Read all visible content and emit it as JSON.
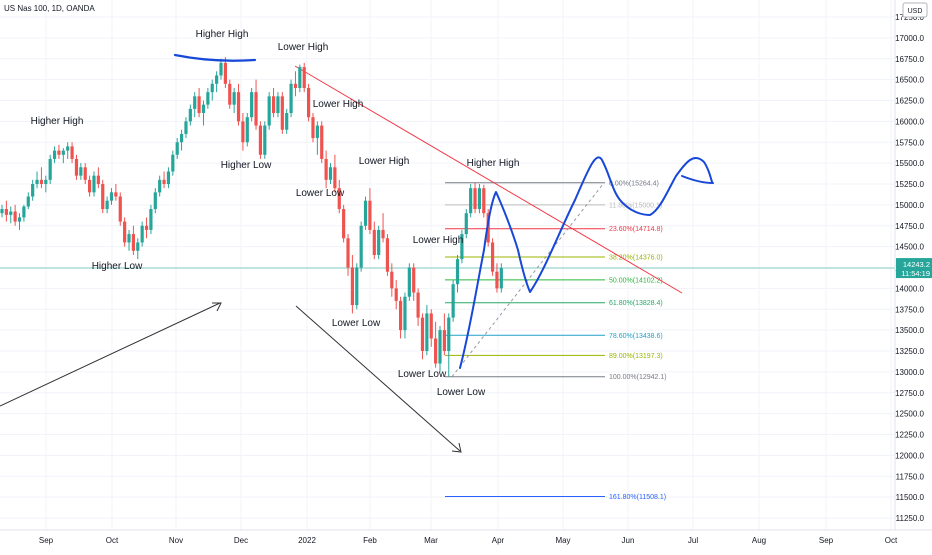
{
  "header": {
    "title": "US Nas 100, 1D, OANDA"
  },
  "chart_data": {
    "type": "candlestick",
    "title": "US Nas 100, 1D, OANDA",
    "currency": "USD",
    "ylim": [
      11150,
      17600
    ],
    "y_ticks": [
      11250,
      11500,
      11750,
      12000,
      12250,
      12500,
      12750,
      13000,
      13250,
      13500,
      13750,
      14000,
      14250,
      14500,
      14750,
      15000,
      15250,
      15500,
      15750,
      16000,
      16250,
      16500,
      16750,
      17000,
      17250
    ],
    "y_tick_labels": [
      "11250.0",
      "11500.0",
      "11750.0",
      "12000.0",
      "12250.0",
      "12500.0",
      "12750.0",
      "13000.0",
      "13250.0",
      "13500.0",
      "13750.0",
      "14000.0",
      "14250.0",
      "14500.0",
      "14750.0",
      "15000.0",
      "15250.0",
      "15500.0",
      "15750.0",
      "16000.0",
      "16250.0",
      "16500.0",
      "16750.0",
      "17000.0",
      "17250.0"
    ],
    "x_labels": [
      "Sep",
      "Oct",
      "Nov",
      "Dec",
      "2022",
      "Feb",
      "Mar",
      "Apr",
      "May",
      "Jun",
      "Jul",
      "Aug",
      "Sep",
      "Oct"
    ],
    "current_price": {
      "value": 14243.2,
      "label": "14243.2",
      "countdown": "11:54:19",
      "color": "#26a69a"
    },
    "colors": {
      "up": "#26a69a",
      "down": "#ef5350",
      "drawing": "#1848d8",
      "trendline": "#f23645",
      "arrow": "#333333"
    },
    "candles": [
      [
        14900,
        15000,
        14850,
        14950
      ],
      [
        14950,
        15050,
        14800,
        14880
      ],
      [
        14880,
        14980,
        14780,
        14920
      ],
      [
        14920,
        15000,
        14750,
        14800
      ],
      [
        14800,
        14900,
        14700,
        14850
      ],
      [
        14850,
        15000,
        14800,
        14980
      ],
      [
        14980,
        15150,
        14950,
        15100
      ],
      [
        15100,
        15300,
        15050,
        15250
      ],
      [
        15250,
        15400,
        15200,
        15300
      ],
      [
        15300,
        15450,
        15200,
        15250
      ],
      [
        15250,
        15350,
        15150,
        15300
      ],
      [
        15300,
        15600,
        15250,
        15550
      ],
      [
        15550,
        15700,
        15500,
        15650
      ],
      [
        15650,
        15720,
        15550,
        15600
      ],
      [
        15600,
        15680,
        15500,
        15650
      ],
      [
        15650,
        15750,
        15550,
        15700
      ],
      [
        15700,
        15750,
        15500,
        15550
      ],
      [
        15550,
        15600,
        15300,
        15350
      ],
      [
        15350,
        15500,
        15300,
        15450
      ],
      [
        15450,
        15500,
        15250,
        15300
      ],
      [
        15300,
        15350,
        15100,
        15150
      ],
      [
        15150,
        15400,
        15100,
        15350
      ],
      [
        15350,
        15450,
        15200,
        15250
      ],
      [
        15250,
        15300,
        14900,
        14950
      ],
      [
        14950,
        15100,
        14900,
        15050
      ],
      [
        15050,
        15200,
        15000,
        15150
      ],
      [
        15150,
        15250,
        15050,
        15100
      ],
      [
        15100,
        15150,
        14750,
        14800
      ],
      [
        14800,
        14850,
        14500,
        14550
      ],
      [
        14550,
        14700,
        14450,
        14650
      ],
      [
        14650,
        14750,
        14400,
        14450
      ],
      [
        14450,
        14600,
        14350,
        14550
      ],
      [
        14550,
        14800,
        14500,
        14750
      ],
      [
        14750,
        14850,
        14600,
        14700
      ],
      [
        14700,
        15000,
        14650,
        14950
      ],
      [
        14950,
        15200,
        14900,
        15150
      ],
      [
        15150,
        15350,
        15100,
        15300
      ],
      [
        15300,
        15400,
        15200,
        15250
      ],
      [
        15250,
        15450,
        15200,
        15400
      ],
      [
        15400,
        15650,
        15350,
        15600
      ],
      [
        15600,
        15800,
        15550,
        15750
      ],
      [
        15750,
        15900,
        15650,
        15850
      ],
      [
        15850,
        16050,
        15800,
        16000
      ],
      [
        16000,
        16200,
        15950,
        16150
      ],
      [
        16150,
        16350,
        16050,
        16300
      ],
      [
        16300,
        16400,
        16050,
        16100
      ],
      [
        16100,
        16250,
        15950,
        16200
      ],
      [
        16200,
        16400,
        16150,
        16350
      ],
      [
        16350,
        16500,
        16250,
        16450
      ],
      [
        16450,
        16600,
        16350,
        16550
      ],
      [
        16550,
        16750,
        16500,
        16700
      ],
      [
        16700,
        16770,
        16400,
        16450
      ],
      [
        16450,
        16500,
        16150,
        16200
      ],
      [
        16200,
        16400,
        16100,
        16350
      ],
      [
        16350,
        16450,
        15950,
        16000
      ],
      [
        16000,
        16100,
        15650,
        15750
      ],
      [
        15750,
        16100,
        15700,
        16050
      ],
      [
        16050,
        16400,
        16000,
        16350
      ],
      [
        16350,
        16500,
        15900,
        15950
      ],
      [
        15950,
        16000,
        15550,
        15600
      ],
      [
        15600,
        16000,
        15550,
        15950
      ],
      [
        15950,
        16350,
        15900,
        16300
      ],
      [
        16300,
        16400,
        16050,
        16100
      ],
      [
        16100,
        16350,
        16050,
        16300
      ],
      [
        16300,
        16350,
        15850,
        15900
      ],
      [
        15900,
        16150,
        15850,
        16100
      ],
      [
        16100,
        16500,
        16050,
        16450
      ],
      [
        16450,
        16600,
        16300,
        16400
      ],
      [
        16400,
        16680,
        16350,
        16650
      ],
      [
        16650,
        16700,
        16350,
        16400
      ],
      [
        16400,
        16450,
        16000,
        16050
      ],
      [
        16050,
        16100,
        15750,
        15800
      ],
      [
        15800,
        16000,
        15600,
        15950
      ],
      [
        15950,
        16000,
        15500,
        15550
      ],
      [
        15550,
        15650,
        15200,
        15300
      ],
      [
        15300,
        15500,
        15250,
        15450
      ],
      [
        15450,
        15600,
        15150,
        15200
      ],
      [
        15200,
        15300,
        14900,
        14950
      ],
      [
        14950,
        15000,
        14550,
        14600
      ],
      [
        14600,
        14650,
        14150,
        14250
      ],
      [
        14250,
        14400,
        13700,
        13800
      ],
      [
        13800,
        14300,
        13750,
        14250
      ],
      [
        14250,
        14800,
        14200,
        14750
      ],
      [
        14750,
        15100,
        14700,
        15050
      ],
      [
        15050,
        15200,
        14650,
        14700
      ],
      [
        14700,
        14800,
        14350,
        14400
      ],
      [
        14400,
        14750,
        14350,
        14700
      ],
      [
        14700,
        14900,
        14550,
        14600
      ],
      [
        14600,
        14650,
        14150,
        14200
      ],
      [
        14200,
        14300,
        13900,
        14000
      ],
      [
        14000,
        14100,
        13750,
        13850
      ],
      [
        13850,
        13900,
        13400,
        13500
      ],
      [
        13500,
        13950,
        13400,
        13900
      ],
      [
        13900,
        14300,
        13850,
        14250
      ],
      [
        14250,
        14300,
        13850,
        13950
      ],
      [
        13950,
        14000,
        13550,
        13650
      ],
      [
        13650,
        13700,
        13150,
        13250
      ],
      [
        13250,
        13800,
        13200,
        13700
      ],
      [
        13700,
        13750,
        13300,
        13400
      ],
      [
        13400,
        13600,
        13050,
        13100
      ],
      [
        13100,
        13550,
        13000,
        13500
      ],
      [
        13500,
        13700,
        13200,
        13250
      ],
      [
        13250,
        13700,
        12942,
        13650
      ],
      [
        13650,
        14100,
        13600,
        14050
      ],
      [
        14050,
        14400,
        13950,
        14350
      ],
      [
        14350,
        14700,
        14300,
        14650
      ],
      [
        14650,
        14950,
        14600,
        14900
      ],
      [
        14900,
        15250,
        14850,
        15200
      ],
      [
        15200,
        15265,
        14900,
        14950
      ],
      [
        14950,
        15250,
        14900,
        15200
      ],
      [
        15200,
        15240,
        14850,
        14900
      ],
      [
        14900,
        14950,
        14500,
        14550
      ],
      [
        14550,
        14600,
        14150,
        14200
      ],
      [
        14200,
        14300,
        13950,
        14000
      ],
      [
        14000,
        14300,
        13950,
        14243
      ]
    ],
    "annotations": [
      {
        "text": "Higher High",
        "x": 57,
        "y": 124
      },
      {
        "text": "Higher Low",
        "x": 117,
        "y": 269
      },
      {
        "text": "Higher High",
        "x": 222,
        "y": 37
      },
      {
        "text": "Higher Low",
        "x": 246,
        "y": 168
      },
      {
        "text": "Lower High",
        "x": 303,
        "y": 50
      },
      {
        "text": "Lower High",
        "x": 338,
        "y": 107
      },
      {
        "text": "Lower Low",
        "x": 320,
        "y": 196
      },
      {
        "text": "Lower High",
        "x": 384,
        "y": 164
      },
      {
        "text": "Lower Low",
        "x": 356,
        "y": 326
      },
      {
        "text": "Lower High",
        "x": 438,
        "y": 243
      },
      {
        "text": "Higher High",
        "x": 493,
        "y": 166
      },
      {
        "text": "Lower Low",
        "x": 422,
        "y": 377
      },
      {
        "text": "Lower Low",
        "x": 461,
        "y": 395
      }
    ],
    "fibonacci": [
      {
        "label": "0.00%(15264.4)",
        "value": 15264.4,
        "color": "#787b86"
      },
      {
        "label": "11.80%(15000.1)",
        "value": 15000.1,
        "color": "#bbbbbb"
      },
      {
        "label": "23.60%(14714.8)",
        "value": 14714.8,
        "color": "#f23645"
      },
      {
        "label": "38.20%(14376.0)",
        "value": 14376.0,
        "color": "#9bb500"
      },
      {
        "label": "50.00%(14102.2)",
        "value": 14102.2,
        "color": "#2ab73a"
      },
      {
        "label": "61.80%(13828.4)",
        "value": 13828.4,
        "color": "#25a866"
      },
      {
        "label": "78.60%(13438.6)",
        "value": 13438.6,
        "color": "#22a0c9"
      },
      {
        "label": "89.00%(13197.3)",
        "value": 13197.3,
        "color": "#9bb500"
      },
      {
        "label": "100.00%(12942.1)",
        "value": 12942.1,
        "color": "#787b86"
      },
      {
        "label": "161.80%(11508.1)",
        "value": 11508.1,
        "color": "#2962ff"
      }
    ]
  }
}
